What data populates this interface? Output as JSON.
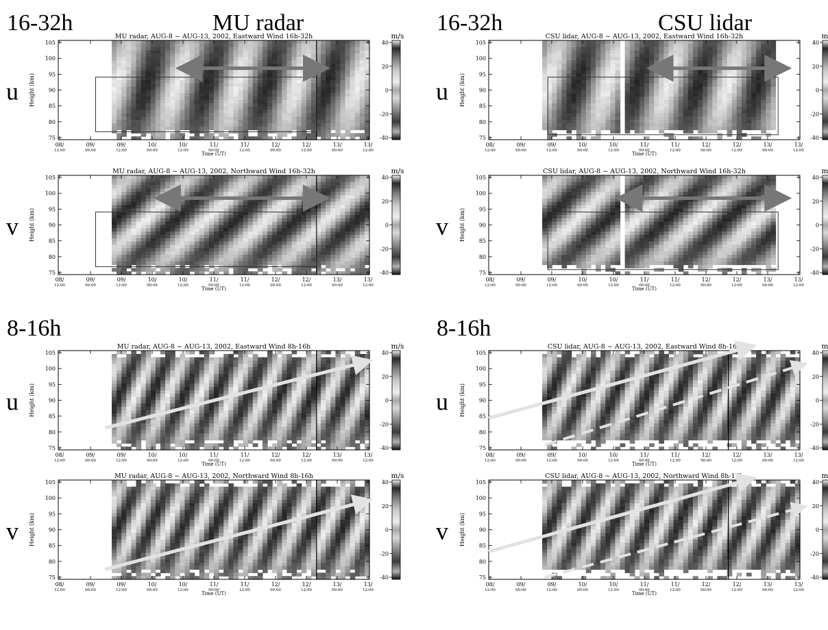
{
  "section_labels": {
    "top": "16-32h",
    "bottom": "8-16h"
  },
  "instrument_labels": {
    "mu": "MU radar",
    "csu": "CSU lidar"
  },
  "row_labels": {
    "u": "u",
    "v": "v"
  },
  "unit": "m/s",
  "y_axis_label": "Height (km)",
  "x_axis_label": "Time (UT)",
  "y_ticks": [
    "105",
    "100",
    "95",
    "90",
    "85",
    "80",
    "75"
  ],
  "colorbar_ticks": [
    "40",
    "20",
    "0",
    "-20",
    "-40"
  ],
  "x_ticks": [
    {
      "d": "08/",
      "t": "12:00"
    },
    {
      "d": "09/",
      "t": "00:00"
    },
    {
      "d": "09/",
      "t": "12:00"
    },
    {
      "d": "10/",
      "t": "00:00"
    },
    {
      "d": "10/",
      "t": "12:00"
    },
    {
      "d": "11/",
      "t": "00:00"
    },
    {
      "d": "11/",
      "t": "12:00"
    },
    {
      "d": "12/",
      "t": "00:00"
    },
    {
      "d": "12/",
      "t": "12:00"
    },
    {
      "d": "13/",
      "t": "00:00"
    },
    {
      "d": "13/",
      "t": "12:00"
    }
  ],
  "panels": [
    {
      "id": "mu-u-32",
      "title": "MU radar, AUG-8 ~ AUG-13, 2002,  Eastward Wind 16h-32h"
    },
    {
      "id": "csu-u-32",
      "title": "CSU lidar, AUG-8 ~ AUG-13, 2002,  Eastward Wind 16h-32h"
    },
    {
      "id": "mu-v-32",
      "title": "MU radar, AUG-8 ~ AUG-13, 2002,  Northward Wind 16h-32h"
    },
    {
      "id": "csu-v-32",
      "title": "CSU lidar, AUG-8 ~ AUG-13, 2002,  Northward Wind 16h-32h"
    },
    {
      "id": "mu-u-16",
      "title": "MU radar, AUG-8 ~ AUG-13, 2002,  Eastward Wind 8h-16h"
    },
    {
      "id": "csu-u-16",
      "title": "CSU lidar, AUG-8 ~ AUG-13, 2002,  Eastward Wind 8h-16h"
    },
    {
      "id": "mu-v-16",
      "title": "MU radar, AUG-8 ~ AUG-13, 2002,  Northward Wind 8h-16h"
    },
    {
      "id": "csu-v-16",
      "title": "CSU lidar, AUG-8 ~ AUG-13, 2002,  Northward Wind 8h-16h"
    }
  ]
}
